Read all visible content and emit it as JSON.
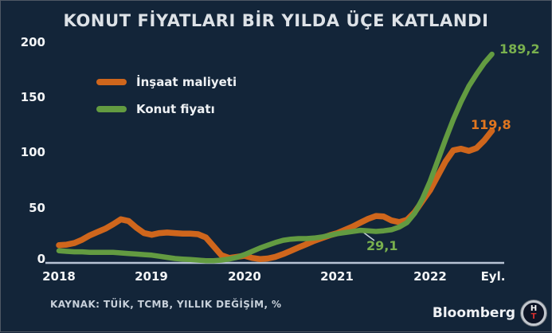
{
  "title": "KONUT FİYATLARI BİR YILDA ÜÇE KATLANDI",
  "source": "KAYNAK: TÜİK, TCMB, YILLIK DEĞİŞİM, %",
  "branding": {
    "name": "Bloomberg",
    "badge_top": "H",
    "badge_bottom": "T"
  },
  "colors": {
    "background": "#132539",
    "axis_line": "#b7c3d4",
    "construction_orange": "#cf661c",
    "housing_green": "#639b41",
    "label_orange": "#e0761f",
    "label_green": "#79b04e"
  },
  "legend": [
    {
      "label": "İnşaat maliyeti",
      "color": "#cf661c"
    },
    {
      "label": "Konut fiyatı",
      "color": "#639b41"
    }
  ],
  "chart_data": {
    "type": "line",
    "title": "KONUT FİYATLARI BİR YILDA ÜÇE KATLANDI",
    "xlabel": "",
    "ylabel": "YILLIK DEĞİŞİM, %",
    "x_unit": "months, Jan 2018 - Sep 2022",
    "grid": false,
    "legend_position": "top-left",
    "x_axis": {
      "tick_labels": [
        "2018",
        "2019",
        "2020",
        "2021",
        "2022",
        "Eyl."
      ]
    },
    "y_axis": {
      "tick_labels": [
        "200",
        "150",
        "100",
        "50",
        "0"
      ],
      "ticks": [
        200,
        150,
        100,
        50,
        0
      ],
      "range": [
        0,
        200
      ]
    },
    "series": [
      {
        "name": "İnşaat maliyeti",
        "color": "#cf661c",
        "stroke_width": 7.5,
        "end_label": "119,8",
        "end_value": 119.8,
        "values": [
          16,
          16.5,
          18,
          21,
          25,
          28,
          31,
          35,
          39.5,
          38,
          32,
          27,
          25.5,
          27,
          27.5,
          27,
          26.5,
          26.5,
          26,
          23,
          15,
          7,
          4.5,
          5.5,
          6.5,
          4.5,
          3.5,
          4,
          5.5,
          8,
          11,
          14,
          17,
          20,
          22.5,
          25,
          27,
          30,
          33,
          36.5,
          40,
          42.5,
          42,
          38.5,
          37,
          39,
          46,
          56,
          66,
          79,
          92,
          102,
          103.5,
          101.5,
          104,
          111,
          119.8
        ]
      },
      {
        "name": "Konut fiyatı",
        "color": "#639b41",
        "stroke_width": 6.5,
        "end_label": "189,2",
        "end_value": 189.2,
        "annotation": {
          "text": "29,1",
          "value": 29.1,
          "month_index": 42
        },
        "values": [
          11,
          10.5,
          10,
          10,
          9.5,
          9.5,
          9.5,
          9.5,
          9,
          8.5,
          8,
          7.5,
          7,
          6,
          5,
          4,
          3.5,
          3,
          2.5,
          2,
          2,
          2.5,
          3.5,
          5,
          7.5,
          10.5,
          13.5,
          16,
          18.5,
          20.5,
          21.5,
          22,
          22,
          22.5,
          23.5,
          25,
          26.5,
          27.5,
          28.5,
          29.5,
          29,
          28.5,
          29.1,
          30,
          32.5,
          36.5,
          45,
          58,
          74,
          93,
          112,
          130,
          146,
          160,
          171,
          181,
          189.2
        ]
      }
    ]
  }
}
